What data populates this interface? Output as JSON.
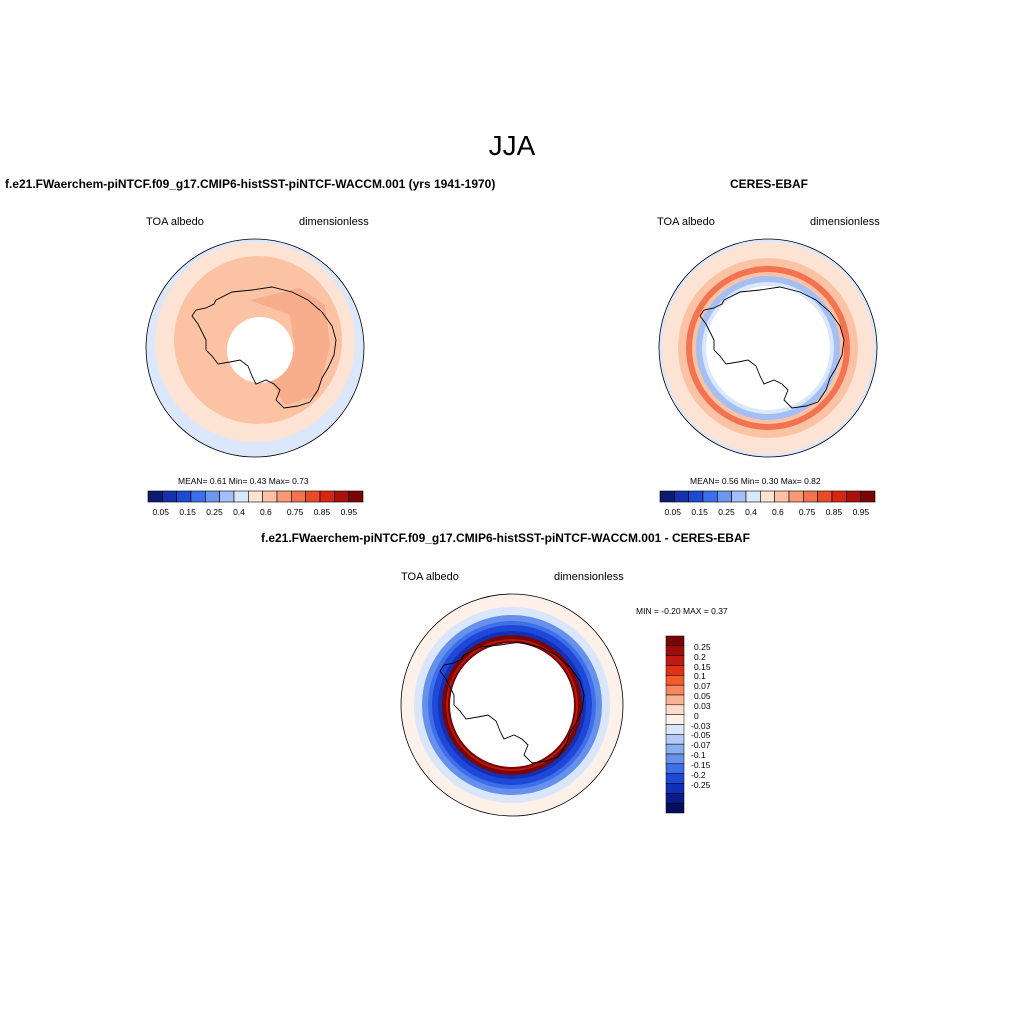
{
  "main_title": "JJA",
  "panels": [
    {
      "title": "f.e21.FWaerchem-piNTCF.f09_g17.CMIP6-histSST-piNTCF-WACCM.001 (yrs 1941-1970)",
      "left_label": "TOA albedo",
      "right_label": "dimensionless",
      "stats": "MEAN=   0.61   Min=    0.43   Max=    0.73"
    },
    {
      "title": "CERES-EBAF",
      "left_label": "TOA albedo",
      "right_label": "dimensionless",
      "stats": "MEAN=   0.56   Min=    0.30   Max=    0.82"
    },
    {
      "title": "f.e21.FWaerchem-piNTCF.f09_g17.CMIP6-histSST-piNTCF-WACCM.001 - CERES-EBAF",
      "left_label": "TOA albedo",
      "right_label": "dimensionless",
      "stats": "MIN =  -0.20  MAX =   0.37"
    }
  ],
  "colorbar_h": {
    "colors": [
      "#0b1b6e",
      "#1530a8",
      "#1f48d8",
      "#3f6fe8",
      "#6e95ef",
      "#a3bff5",
      "#dbe7fb",
      "#fde3d4",
      "#fbc3a4",
      "#f79a75",
      "#f27350",
      "#ea4a2a",
      "#d72713",
      "#a8120a",
      "#7a0505"
    ],
    "ticks": [
      "0.05",
      "0.15",
      "0.25",
      "0.4",
      "0.6",
      "0.75",
      "0.85",
      "0.95"
    ]
  },
  "colorbar_v": {
    "colors": [
      "#7a0505",
      "#9e0d0a",
      "#c11b10",
      "#df3215",
      "#f35a2e",
      "#f7875f",
      "#fab397",
      "#fddccb",
      "#fdf1ea",
      "#dae6fb",
      "#b3cbf6",
      "#8aaef1",
      "#6590ec",
      "#3f6fe8",
      "#1f48d8",
      "#1230b5",
      "#0b1b8a",
      "#050f5e"
    ],
    "ticks": [
      "0.25",
      "0.2",
      "0.15",
      "0.1",
      "0.07",
      "0.05",
      "0.03",
      "0",
      "-0.03",
      "-0.05",
      "-0.07",
      "-0.1",
      "-0.15",
      "-0.2",
      "-0.25"
    ]
  }
}
